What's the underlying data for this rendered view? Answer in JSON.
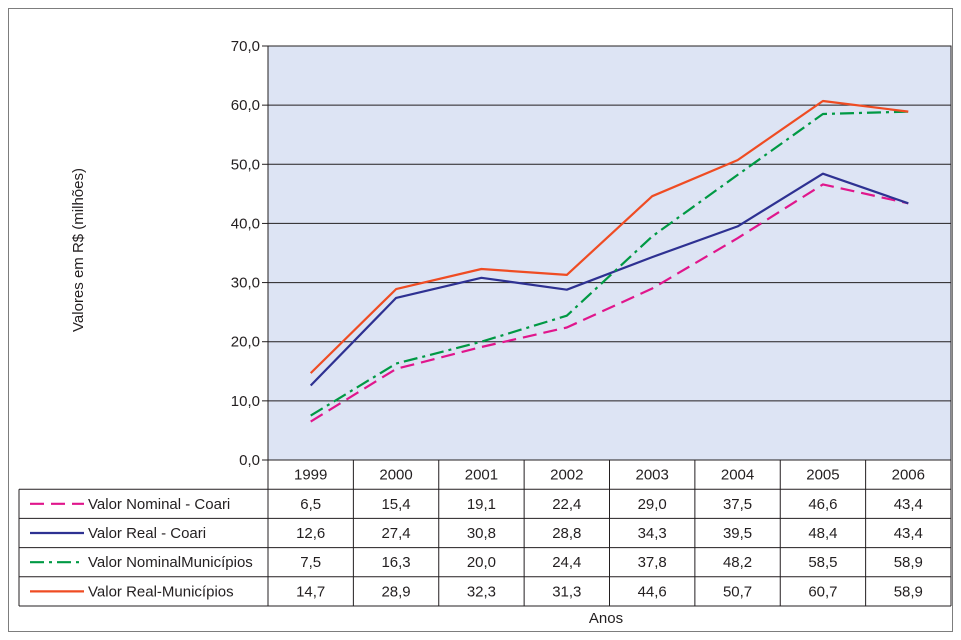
{
  "chart_data": {
    "type": "line",
    "categories": [
      "1999",
      "2000",
      "2001",
      "2002",
      "2003",
      "2004",
      "2005",
      "2006"
    ],
    "series": [
      {
        "name": "Valor Nominal - Coari",
        "values": [
          6.5,
          15.4,
          19.1,
          22.4,
          29.0,
          37.5,
          46.6,
          43.4
        ],
        "color": "#e0168c",
        "dash": "dash"
      },
      {
        "name": "Valor Real - Coari",
        "values": [
          12.6,
          27.4,
          30.8,
          28.8,
          34.3,
          39.5,
          48.4,
          43.4
        ],
        "color": "#2e3192",
        "dash": "solid"
      },
      {
        "name": "Valor NominalMunicípios",
        "values": [
          7.5,
          16.3,
          20.0,
          24.4,
          37.8,
          48.2,
          58.5,
          58.9
        ],
        "color": "#009944",
        "dash": "dashdot"
      },
      {
        "name": "Valor Real-Municípios",
        "values": [
          14.7,
          28.9,
          32.3,
          31.3,
          44.6,
          50.7,
          60.7,
          58.9
        ],
        "color": "#ef4c23",
        "dash": "solid"
      }
    ],
    "table_values": [
      [
        "6,5",
        "15,4",
        "19,1",
        "22,4",
        "29,0",
        "37,5",
        "46,6",
        "43,4"
      ],
      [
        "12,6",
        "27,4",
        "30,8",
        "28,8",
        "34,3",
        "39,5",
        "48,4",
        "43,4"
      ],
      [
        "7,5",
        "16,3",
        "20,0",
        "24,4",
        "37,8",
        "48,2",
        "58,5",
        "58,9"
      ],
      [
        "14,7",
        "28,9",
        "32,3",
        "31,3",
        "44,6",
        "50,7",
        "60,7",
        "58,9"
      ]
    ],
    "y_ticks": [
      "0,0",
      "10,0",
      "20,0",
      "30,0",
      "40,0",
      "50,0",
      "60,0",
      "70,0"
    ],
    "ylim": [
      0,
      70
    ],
    "xlabel": "Anos",
    "ylabel": "Valores em R$ (milhões)",
    "grid": true,
    "legend": "data-table",
    "plot_background": "#dde4f4"
  }
}
